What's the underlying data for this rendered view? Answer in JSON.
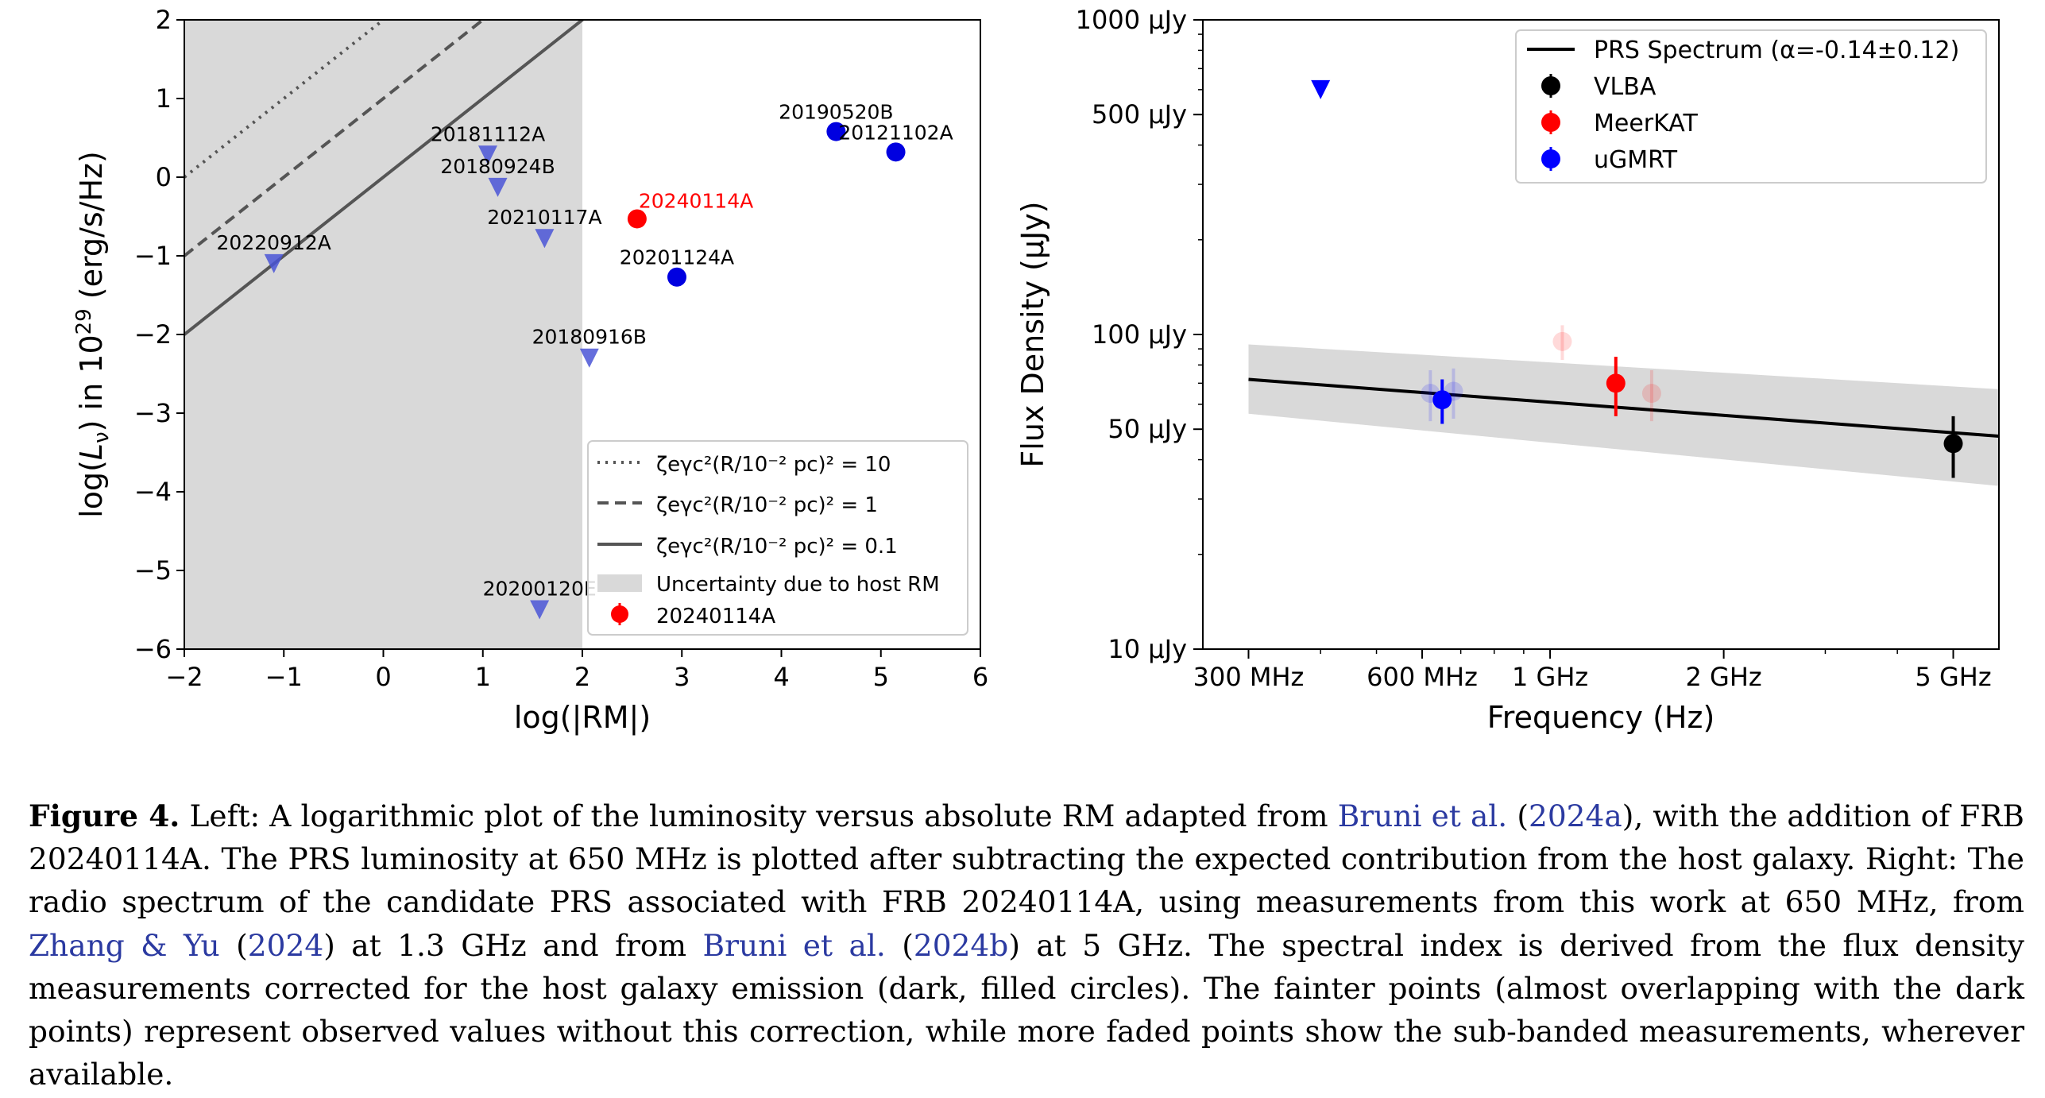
{
  "chart_data": [
    {
      "type": "scatter",
      "xlabel": "log(|RM|)",
      "ylabel_html_parts": [
        "log(",
        "L",
        "ν",
        ") in 10",
        "29",
        " (erg/s/Hz)"
      ],
      "xlim": [
        -2,
        6
      ],
      "ylim": [
        -6,
        2
      ],
      "xticks": [
        -2,
        -1,
        0,
        1,
        2,
        3,
        4,
        5,
        6
      ],
      "yticks": [
        -6,
        -5,
        -4,
        -3,
        -2,
        -1,
        0,
        1,
        2
      ],
      "shaded_region": {
        "x_from": -2,
        "x_to": 2,
        "color": "#d9d9d9",
        "label": "Uncertainty due to host RM"
      },
      "lines": [
        {
          "style": "dotted",
          "intercept": 2.0,
          "slope": 1,
          "label": "ζeγc²(R/10⁻² pc)² = 10"
        },
        {
          "style": "dashed",
          "intercept": 1.0,
          "slope": 1,
          "label": "ζeγc²(R/10⁻² pc)² = 1"
        },
        {
          "style": "solid",
          "intercept": 0.0,
          "slope": 1,
          "label": "ζeγc²(R/10⁻² pc)² = 0.1"
        }
      ],
      "upper_limits": [
        {
          "name": "20181112A",
          "x": 1.05,
          "y": 0.28
        },
        {
          "name": "20180924B",
          "x": 1.15,
          "y": -0.13
        },
        {
          "name": "20210117A",
          "x": 1.62,
          "y": -0.78
        },
        {
          "name": "20220912A",
          "x": -1.1,
          "y": -1.1
        },
        {
          "name": "20180916B",
          "x": 2.07,
          "y": -2.3
        },
        {
          "name": "20200120E",
          "x": 1.57,
          "y": -5.5
        }
      ],
      "detections": [
        {
          "name": "20190520B",
          "x": 4.55,
          "y": 0.58
        },
        {
          "name": "20121102A",
          "x": 5.15,
          "y": 0.32
        },
        {
          "name": "20201124A",
          "x": 2.95,
          "y": -1.27
        }
      ],
      "highlight": {
        "name": "20240114A",
        "x": 2.55,
        "y": -0.53,
        "color": "#ff0000"
      },
      "legend_entries": [
        "ζeγc²(R/10⁻² pc)² = 10",
        "ζeγc²(R/10⁻² pc)² = 1",
        "ζeγc²(R/10⁻² pc)² = 0.1",
        "Uncertainty due to host RM",
        "20240114A"
      ],
      "legend_position": "bottom-right"
    },
    {
      "type": "scatter",
      "xlabel": "Frequency (Hz)",
      "ylabel": "Flux Density (μJy)",
      "xscale": "log",
      "yscale": "log",
      "xlim_MHz": [
        250,
        6000
      ],
      "ylim_uJy": [
        10,
        1000
      ],
      "xtick_labels": [
        "300 MHz",
        "600 MHz",
        "1 GHz",
        "2 GHz",
        "5 GHz"
      ],
      "xtick_values_MHz": [
        300,
        600,
        1000,
        2000,
        5000
      ],
      "ytick_labels": [
        "10 μJy",
        "50 μJy",
        "100 μJy",
        "500 μJy",
        "1000 μJy"
      ],
      "ytick_values_uJy": [
        10,
        50,
        100,
        500,
        1000
      ],
      "spectrum_fit": {
        "label": "PRS Spectrum (α=-0.14±0.12)",
        "x_MHz": [
          300,
          6000
        ],
        "y_uJy": [
          72,
          47.5
        ],
        "band_upper_uJy": [
          93,
          67
        ],
        "band_lower_uJy": [
          56,
          33
        ]
      },
      "series": [
        {
          "name": "VLBA",
          "color": "#000000",
          "points": [
            {
              "x_MHz": 5000,
              "y_uJy": 45,
              "err_uJy": 10
            }
          ]
        },
        {
          "name": "MeerKAT",
          "color": "#ff0000",
          "points": [
            {
              "x_MHz": 1300,
              "y_uJy": 70,
              "err_uJy": 15
            }
          ],
          "faded_points": [
            {
              "x_MHz": 1050,
              "y_uJy": 95,
              "err_uJy": 12
            },
            {
              "x_MHz": 1500,
              "y_uJy": 65,
              "err_uJy": 12
            }
          ]
        },
        {
          "name": "uGMRT",
          "color": "#0000ff",
          "points": [
            {
              "x_MHz": 650,
              "y_uJy": 62,
              "err_uJy": 10
            }
          ],
          "faded_points": [
            {
              "x_MHz": 620,
              "y_uJy": 65,
              "err_uJy": 12
            },
            {
              "x_MHz": 680,
              "y_uJy": 66,
              "err_uJy": 12
            }
          ]
        }
      ],
      "upper_limits": [
        {
          "x_MHz": 400,
          "y_uJy": 600,
          "color": "#0000ff"
        }
      ],
      "legend_position": "top-right"
    }
  ],
  "caption": {
    "label": "Figure 4.",
    "t1": " Left: A logarithmic plot of the luminosity versus absolute RM adapted from ",
    "c1": "Bruni et al.",
    "t2": " (",
    "c2": "2024a",
    "t3": "), with the addition of FRB 20240114A. The PRS luminosity at 650 MHz is plotted after subtracting the expected contribution from the host galaxy.  Right: The radio spectrum of the candidate PRS associated with FRB 20240114A, using measurements from this work at 650 MHz, from ",
    "c3": "Zhang & Yu",
    "t4": " (",
    "c4": "2024",
    "t5": ") at 1.3 GHz and from ",
    "c5": "Bruni et al.",
    "t6": " (",
    "c6": "2024b",
    "t7": ") at 5 GHz. The spectral index is derived from the flux density measurements corrected for the host galaxy emission (dark, filled circles).  The fainter points (almost overlapping with the dark points) represent observed values without this correction, while more faded points show the sub-banded measurements, wherever available."
  }
}
